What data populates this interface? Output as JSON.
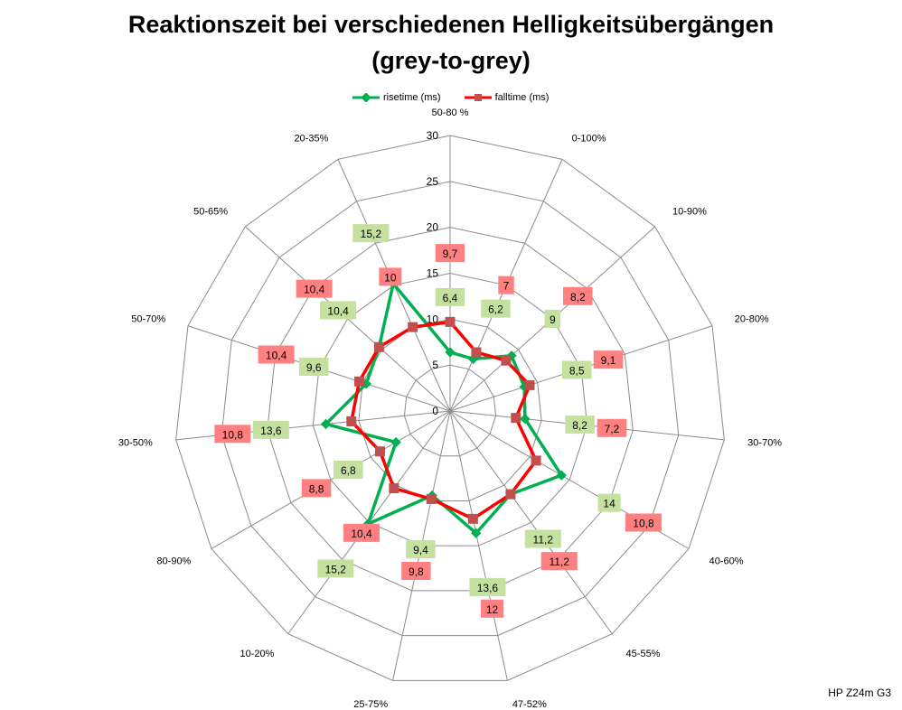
{
  "chart_data": {
    "type": "radar",
    "title": "Reaktionszeit bei verschiedenen Helligkeitsübergängen",
    "subtitle": "(grey-to-grey)",
    "categories": [
      "50-80 %",
      "0-100%",
      "10-90%",
      "20-80%",
      "30-70%",
      "40-60%",
      "45-55%",
      "47-52%",
      "25-75%",
      "10-20%",
      "80-90%",
      "30-50%",
      "50-70%",
      "50-65%",
      "20-35%"
    ],
    "series": [
      {
        "name": "risetime (ms)",
        "color": "#00b050",
        "label_bg": "#c4e19f",
        "values": [
          6.4,
          6.2,
          9,
          8.5,
          8.2,
          14,
          11.2,
          13.6,
          9.4,
          15.2,
          6.8,
          13.6,
          9.6,
          10.4,
          15.2
        ]
      },
      {
        "name": "falltime (ms)",
        "color": "#ff0000",
        "marker_color": "#c0504d",
        "label_bg": "#ff8080",
        "values": [
          9.7,
          7,
          8.2,
          9.1,
          7.2,
          10.8,
          11.2,
          12,
          9.8,
          10.4,
          8.8,
          10.8,
          10.4,
          10.4,
          10
        ]
      }
    ],
    "rlim": [
      0,
      30
    ],
    "ticks": [
      "0",
      "5",
      "10",
      "15",
      "20",
      "25",
      "30"
    ],
    "legend": "top",
    "grid": true
  },
  "watermark": "HP Z24m G3"
}
